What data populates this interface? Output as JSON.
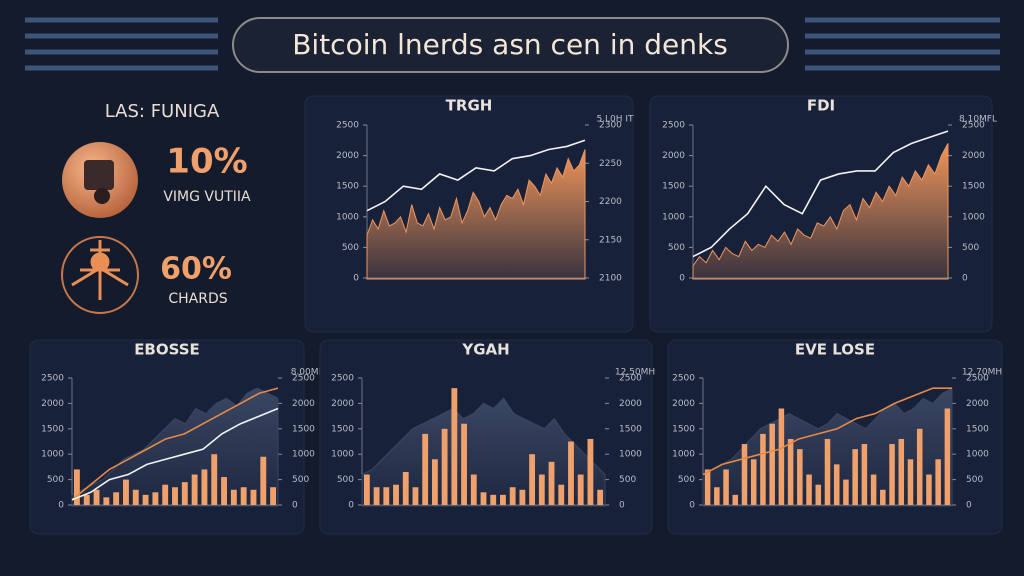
{
  "header": {
    "title": "Bitcoin lnerds asn cen in denks"
  },
  "side": {
    "title": "LAS: FUNIGA",
    "stats": [
      {
        "value": "10%",
        "label": "VIMG VUTIIA"
      },
      {
        "value": "60%",
        "label": "CHARDS"
      }
    ]
  },
  "chart_data": [
    {
      "type": "line",
      "title": "TRGH",
      "y2_label": "5.L0H IT",
      "ylim": [
        0,
        2500
      ],
      "yticks": [
        0,
        500,
        1000,
        1500,
        2000,
        2500
      ],
      "y2lim": [
        2100,
        2300
      ],
      "y2ticks": [
        2100,
        2150,
        2200,
        2250,
        2300
      ],
      "series": [
        {
          "type": "area",
          "color": "#f0955a",
          "values": [
            700,
            950,
            800,
            1100,
            850,
            900,
            1000,
            750,
            1200,
            900,
            850,
            1050,
            800,
            1150,
            950,
            1000,
            1300,
            900,
            1100,
            1400,
            1250,
            1000,
            1150,
            950,
            1200,
            1350,
            1300,
            1450,
            1200,
            1600,
            1500,
            1350,
            1700,
            1550,
            1800,
            1650,
            1950,
            1750,
            1850,
            2100
          ]
        },
        {
          "type": "line",
          "color": "#f2f2f2",
          "values": [
            1100,
            1250,
            1500,
            1450,
            1700,
            1600,
            1800,
            1750,
            1950,
            2000,
            2100,
            2150,
            2250
          ]
        }
      ]
    },
    {
      "type": "line",
      "title": "FDI",
      "y2_label": "8.10MFL",
      "ylim": [
        0,
        2500
      ],
      "yticks": [
        0,
        500,
        1000,
        1500,
        2000,
        2500
      ],
      "y2lim": [
        0,
        2500
      ],
      "y2ticks": [
        0,
        500,
        1000,
        1500,
        2000,
        2500
      ],
      "series": [
        {
          "type": "area",
          "color": "#f0955a",
          "values": [
            200,
            350,
            250,
            450,
            300,
            500,
            400,
            350,
            600,
            450,
            550,
            500,
            700,
            600,
            750,
            550,
            800,
            700,
            650,
            900,
            850,
            1000,
            800,
            1100,
            1200,
            950,
            1300,
            1150,
            1400,
            1250,
            1500,
            1350,
            1650,
            1500,
            1750,
            1600,
            1850,
            1700,
            2000,
            2200
          ]
        },
        {
          "type": "line",
          "color": "#f2f2f2",
          "values": [
            350,
            500,
            800,
            1050,
            1500,
            1200,
            1050,
            1600,
            1700,
            1750,
            1750,
            2050,
            2200,
            2300,
            2400
          ]
        }
      ]
    },
    {
      "type": "bar",
      "title": "EBOSSE",
      "y2_label": "8.00MH",
      "ylim": [
        0,
        2500
      ],
      "yticks": [
        0,
        500,
        1000,
        1500,
        2000,
        2500
      ],
      "y2lim": [
        0,
        2500
      ],
      "y2ticks": [
        0,
        500,
        1000,
        1500,
        2000,
        2500
      ],
      "series": [
        {
          "type": "area",
          "color": "#3a4763",
          "values": [
            200,
            300,
            400,
            500,
            700,
            900,
            1000,
            1100,
            1300,
            1500,
            1700,
            1600,
            1900,
            1800,
            2000,
            2100,
            1950,
            2200,
            2300,
            2200,
            2100
          ]
        },
        {
          "type": "bar",
          "color": "#f0a06a",
          "values": [
            700,
            200,
            300,
            150,
            250,
            500,
            300,
            200,
            250,
            400,
            350,
            450,
            600,
            700,
            1000,
            550,
            300,
            350,
            300,
            950,
            350
          ]
        },
        {
          "type": "line",
          "color": "#e88a45",
          "values": [
            100,
            400,
            700,
            900,
            1100,
            1300,
            1400,
            1600,
            1800,
            2000,
            2200,
            2300
          ]
        },
        {
          "type": "line",
          "color": "#f2f2f2",
          "values": [
            100,
            250,
            500,
            600,
            800,
            900,
            1000,
            1100,
            1400,
            1600,
            1750,
            1900
          ]
        }
      ]
    },
    {
      "type": "bar",
      "title": "YGAH",
      "y2_label": "12.50MH",
      "ylim": [
        0,
        2500
      ],
      "yticks": [
        0,
        500,
        1000,
        1500,
        2000,
        2500
      ],
      "y2lim": [
        0,
        2500
      ],
      "y2ticks": [
        0,
        500,
        1000,
        1500,
        2000,
        2500
      ],
      "series": [
        {
          "type": "area",
          "color": "#3a4763",
          "values": [
            600,
            700,
            900,
            1100,
            1300,
            1500,
            1600,
            1700,
            1800,
            1900,
            1700,
            1800,
            2000,
            1900,
            2100,
            1800,
            1700,
            1600,
            1500,
            1700,
            1400,
            1200,
            1000,
            800,
            600
          ]
        },
        {
          "type": "bar",
          "color": "#f0a06a",
          "values": [
            600,
            350,
            350,
            400,
            650,
            350,
            1400,
            900,
            1500,
            2300,
            1600,
            600,
            250,
            200,
            200,
            350,
            300,
            1000,
            600,
            850,
            400,
            1250,
            600,
            1300,
            300
          ]
        }
      ]
    },
    {
      "type": "bar",
      "title": "EVE LOSE",
      "y2_label": "12.70MH",
      "ylim": [
        0,
        2500
      ],
      "yticks": [
        0,
        500,
        1000,
        1500,
        2000,
        2500
      ],
      "y2lim": [
        0,
        2500
      ],
      "y2ticks": [
        0,
        500,
        1000,
        1500,
        2000,
        2500
      ],
      "series": [
        {
          "type": "area",
          "color": "#3a4763",
          "values": [
            600,
            700,
            800,
            900,
            1100,
            1300,
            1500,
            1600,
            1700,
            1800,
            1700,
            1600,
            1500,
            1600,
            1800,
            1700,
            1600,
            1500,
            1700,
            1900,
            2000,
            1800,
            1900,
            2100,
            2000,
            2200,
            2300
          ]
        },
        {
          "type": "bar",
          "color": "#f0a06a",
          "values": [
            700,
            350,
            700,
            200,
            1200,
            900,
            1400,
            1600,
            1900,
            1300,
            1100,
            600,
            400,
            1300,
            800,
            500,
            1100,
            1200,
            600,
            300,
            1200,
            1300,
            900,
            1500,
            600,
            900,
            1900
          ]
        },
        {
          "type": "line",
          "color": "#e88a45",
          "values": [
            600,
            800,
            900,
            1000,
            1100,
            1300,
            1400,
            1500,
            1700,
            1800,
            2000,
            2150,
            2300,
            2300
          ]
        }
      ]
    }
  ]
}
